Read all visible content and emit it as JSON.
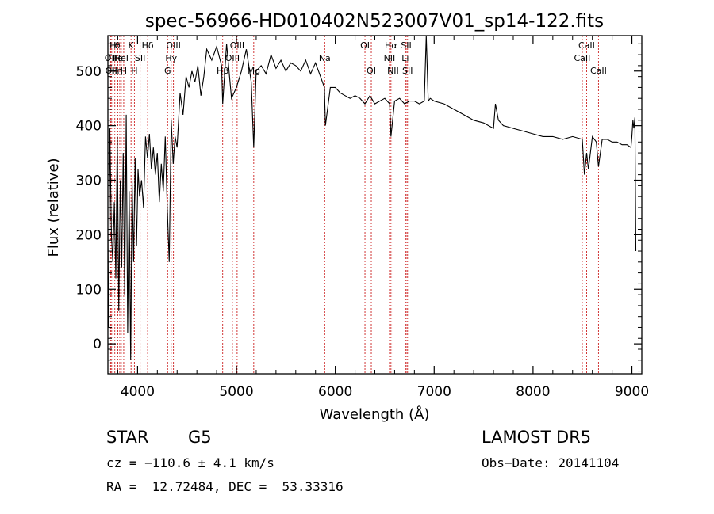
{
  "chart_data": {
    "type": "line",
    "title": "spec-56966-HD010402N523007V01_sp14-122.fits",
    "xlabel": "Wavelength (Å)",
    "ylabel": "Flux (relative)",
    "xlim": [
      3700,
      9100
    ],
    "ylim": [
      -55,
      565
    ],
    "x_ticks": [
      "4000",
      "5000",
      "6000",
      "7000",
      "8000",
      "9000"
    ],
    "y_ticks": [
      "0",
      "100",
      "200",
      "300",
      "400",
      "500"
    ],
    "x_tick_values": [
      4000,
      5000,
      6000,
      7000,
      8000,
      9000
    ],
    "y_tick_values": [
      0,
      100,
      200,
      300,
      400,
      500
    ],
    "series": [
      {
        "x": [
          3705,
          3720,
          3735,
          3750,
          3765,
          3780,
          3795,
          3810,
          3825,
          3840,
          3855,
          3870,
          3885,
          3900,
          3915,
          3930,
          3945,
          3960,
          3975,
          3990,
          4005,
          4020,
          4040,
          4060,
          4080,
          4100,
          4120,
          4140,
          4160,
          4180,
          4200,
          4220,
          4240,
          4260,
          4280,
          4300,
          4320,
          4340,
          4360,
          4380,
          4400,
          4430,
          4460,
          4490,
          4520,
          4550,
          4580,
          4610,
          4640,
          4670,
          4700,
          4750,
          4800,
          4850,
          4861,
          4900,
          4950,
          5000,
          5050,
          5100,
          5150,
          5175,
          5200,
          5250,
          5300,
          5350,
          5400,
          5450,
          5500,
          5550,
          5600,
          5650,
          5700,
          5750,
          5800,
          5850,
          5890,
          5900,
          5950,
          6000,
          6050,
          6100,
          6150,
          6200,
          6250,
          6300,
          6350,
          6400,
          6450,
          6500,
          6550,
          6563,
          6600,
          6650,
          6700,
          6750,
          6800,
          6850,
          6900,
          6920,
          6940,
          6960,
          7000,
          7100,
          7200,
          7300,
          7400,
          7500,
          7600,
          7620,
          7650,
          7700,
          7800,
          7900,
          8000,
          8100,
          8200,
          8300,
          8400,
          8498,
          8520,
          8542,
          8560,
          8600,
          8640,
          8662,
          8700,
          8750,
          8800,
          8850,
          8900,
          8950,
          8990,
          9000,
          9010,
          9020,
          9030,
          9040
        ],
        "y": [
          30,
          395,
          200,
          150,
          260,
          120,
          380,
          60,
          300,
          140,
          350,
          90,
          420,
          20,
          280,
          -30,
          300,
          150,
          340,
          180,
          320,
          270,
          300,
          250,
          380,
          340,
          385,
          320,
          360,
          310,
          350,
          260,
          330,
          280,
          380,
          250,
          150,
          410,
          330,
          380,
          360,
          460,
          420,
          490,
          470,
          500,
          480,
          510,
          455,
          490,
          540,
          520,
          545,
          510,
          440,
          550,
          450,
          470,
          500,
          540,
          480,
          360,
          500,
          510,
          495,
          530,
          505,
          520,
          500,
          515,
          510,
          500,
          520,
          495,
          515,
          490,
          470,
          400,
          470,
          470,
          460,
          455,
          450,
          455,
          450,
          440,
          455,
          440,
          445,
          450,
          440,
          380,
          445,
          450,
          440,
          445,
          445,
          440,
          445,
          570,
          445,
          450,
          445,
          440,
          430,
          420,
          410,
          405,
          395,
          440,
          410,
          400,
          395,
          390,
          385,
          380,
          380,
          375,
          380,
          375,
          310,
          350,
          320,
          380,
          370,
          325,
          375,
          375,
          370,
          370,
          365,
          365,
          360,
          380,
          410,
          395,
          415,
          170
        ]
      }
    ],
    "line_labels": [
      {
        "x": 3727,
        "row": 1,
        "text": "OII"
      },
      {
        "x": 3734,
        "row": 2,
        "text": "OII"
      },
      {
        "x": 3750,
        "row": 0,
        "text": "H"
      },
      {
        "x": 3770,
        "row": 2,
        "text": "H"
      },
      {
        "x": 3797,
        "row": 0,
        "text": "θ"
      },
      {
        "x": 3800,
        "row": 1,
        "text": "Ile"
      },
      {
        "x": 3820,
        "row": 2,
        "text": "η"
      },
      {
        "x": 3835,
        "row": 1,
        "text": "HeI"
      },
      {
        "x": 3860,
        "row": 2,
        "text": "H"
      },
      {
        "x": 3934,
        "row": 0,
        "text": "K"
      },
      {
        "x": 3968,
        "row": 2,
        "text": "H"
      },
      {
        "x": 4026,
        "row": 1,
        "text": "SII"
      },
      {
        "x": 4102,
        "row": 0,
        "text": "Hδ"
      },
      {
        "x": 4304,
        "row": 2,
        "text": "G"
      },
      {
        "x": 4340,
        "row": 1,
        "text": "Hγ"
      },
      {
        "x": 4363,
        "row": 0,
        "text": "OIII"
      },
      {
        "x": 4861,
        "row": 2,
        "text": "Hβ"
      },
      {
        "x": 4959,
        "row": 1,
        "text": "OIII"
      },
      {
        "x": 5007,
        "row": 0,
        "text": "OIII"
      },
      {
        "x": 5175,
        "row": 2,
        "text": "Mg"
      },
      {
        "x": 5893,
        "row": 1,
        "text": "Na"
      },
      {
        "x": 6300,
        "row": 0,
        "text": "OI"
      },
      {
        "x": 6364,
        "row": 2,
        "text": "OI"
      },
      {
        "x": 6548,
        "row": 1,
        "text": "NII"
      },
      {
        "x": 6563,
        "row": 0,
        "text": "Hα"
      },
      {
        "x": 6584,
        "row": 2,
        "text": "NII"
      },
      {
        "x": 6708,
        "row": 1,
        "text": "Li"
      },
      {
        "x": 6717,
        "row": 0,
        "text": "SII"
      },
      {
        "x": 6731,
        "row": 2,
        "text": "SII"
      },
      {
        "x": 8498,
        "row": 1,
        "text": "CaII"
      },
      {
        "x": 8542,
        "row": 0,
        "text": "CaII"
      },
      {
        "x": 8662,
        "row": 2,
        "text": "CaII"
      }
    ]
  },
  "info": {
    "object_class": "STAR",
    "subclass": "G5",
    "survey": "LAMOST DR5",
    "cz": "cz = −110.6 ± 4.1 km/s",
    "obs_date": "Obs−Date: 20141104",
    "coords": "RA =  12.72484, DEC =  53.33316"
  },
  "colors": {
    "line_marker": "#cc2222",
    "spectrum": "#000000"
  }
}
